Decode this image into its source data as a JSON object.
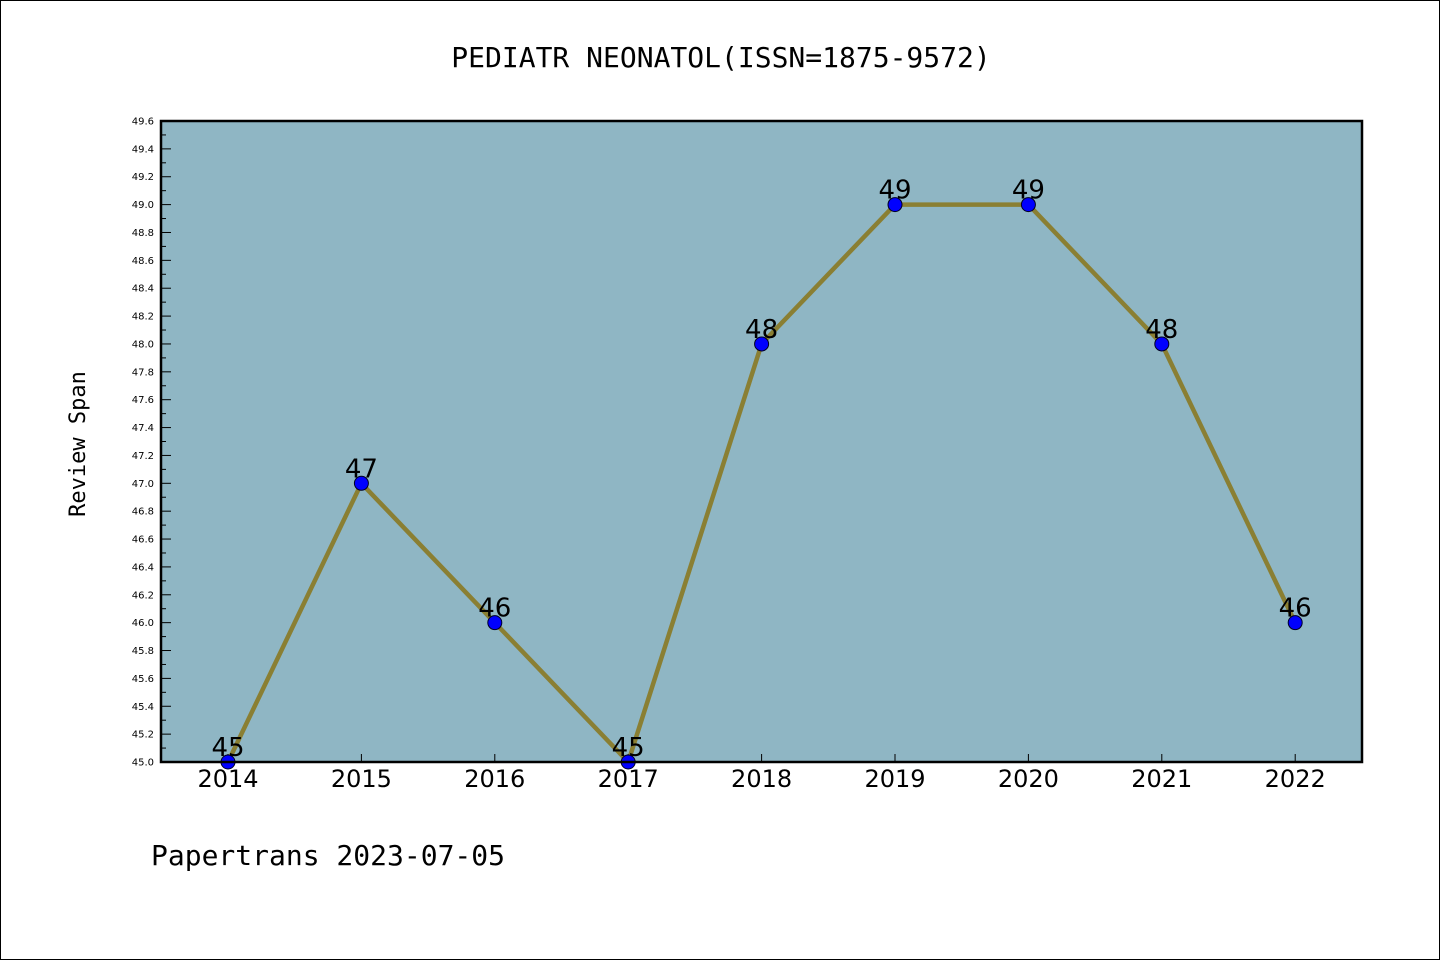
{
  "chart_data": {
    "type": "line",
    "title": "PEDIATR NEONATOL(ISSN=1875-9572)",
    "ylabel": "Review Span",
    "xlabel": "",
    "footer": "Papertrans 2023-07-05",
    "categories": [
      "2014",
      "2015",
      "2016",
      "2017",
      "2018",
      "2019",
      "2020",
      "2021",
      "2022"
    ],
    "series": [
      {
        "values": [
          45,
          47,
          46,
          45,
          48,
          49,
          49,
          48,
          46
        ]
      }
    ],
    "data_labels": [
      "45",
      "47",
      "46",
      "45",
      "48",
      "49",
      "49",
      "48",
      "46"
    ],
    "ylim": [
      45.0,
      49.6
    ],
    "yticks": [
      "45.0",
      "45.2",
      "45.4",
      "45.6",
      "45.8",
      "46.0",
      "46.2",
      "46.4",
      "46.6",
      "46.8",
      "47.0",
      "47.2",
      "47.4",
      "47.6",
      "47.8",
      "48.0",
      "48.2",
      "48.4",
      "48.6",
      "48.8",
      "49.0",
      "49.2",
      "49.4",
      "49.6"
    ],
    "grid": false,
    "colors": {
      "plot_background": "#8fb6c4",
      "line": "#8a7f33",
      "marker": "#0000ff",
      "axis": "#000000"
    }
  }
}
